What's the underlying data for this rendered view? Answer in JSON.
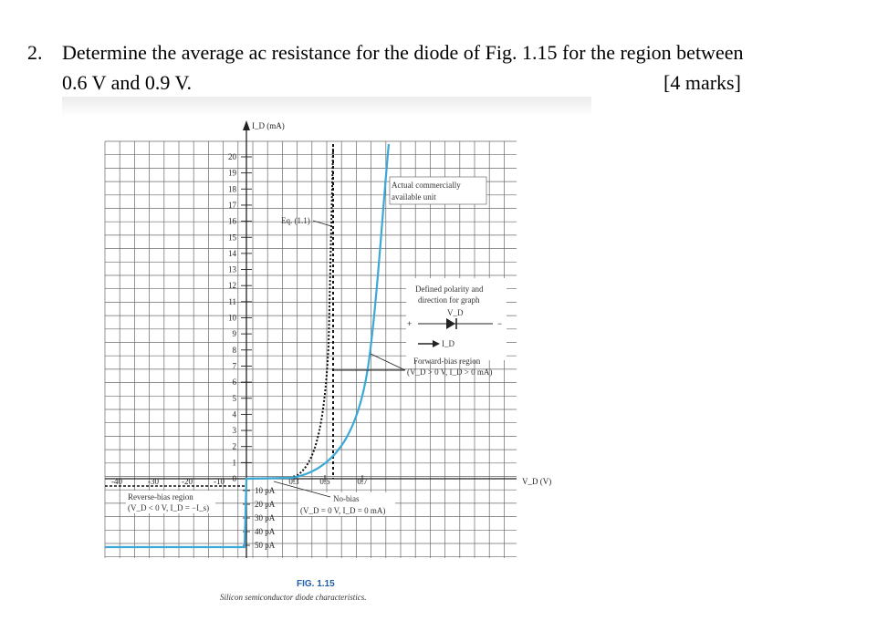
{
  "question": {
    "number": "2.",
    "line1": "Determine the average ac resistance for the diode of Fig. 1.15 for the region between",
    "line2": "0.6 V and 0.9 V.",
    "marks": "[4 marks]"
  },
  "figure": {
    "caption": "FIG. 1.15",
    "subcaption": "Silicon semiconductor diode characteristics.",
    "y_axis_label": "I_D (mA)",
    "x_axis_label": "V_D (V)",
    "y_ticks": [
      "20",
      "19",
      "18",
      "17",
      "16",
      "15",
      "14",
      "13",
      "12",
      "11",
      "10",
      "9",
      "8",
      "7",
      "6",
      "5",
      "4",
      "3",
      "2",
      "1",
      "0"
    ],
    "x_ticks_positive": [
      "0.3",
      "0.5",
      "0.7"
    ],
    "x_ticks_negative": [
      "-40",
      "-30",
      "-20",
      "-10"
    ],
    "neg_current_ticks": [
      "10 pA",
      "20 pA",
      "30 pA",
      "40 pA",
      "50 pA"
    ],
    "annotations": {
      "eq_label": "Eq. (1.1)",
      "actual_line1": "Actual commercially",
      "actual_line2": "available unit",
      "polarity_line1": "Defined polarity and",
      "polarity_line2": "direction for graph",
      "plus": "+",
      "minus": "−",
      "vd": "V_D",
      "id": "I_D",
      "forward_line1": "Forward-bias region",
      "forward_line2": "(V_D > 0 V, I_D > 0 mA)",
      "reverse_line1": "Reverse-bias region",
      "reverse_line2": "(V_D < 0 V, I_D = −I_s)",
      "nobias_line1": "No-bias",
      "nobias_line2": "(V_D = 0 V, I_D = 0 mA)"
    },
    "colors": {
      "actual_curve": "#3aa9d6",
      "eq_curve": "#111111",
      "caption": "#1f5ea8"
    }
  }
}
